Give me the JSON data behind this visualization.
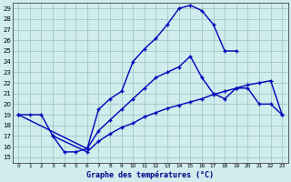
{
  "xlabel": "Graphe des températures (°C)",
  "bg_color": "#d0ecec",
  "grid_color": "#a8cccc",
  "line_color": "#0000bb",
  "xlim": [
    -0.5,
    23.5
  ],
  "ylim": [
    14.5,
    29.5
  ],
  "yticks": [
    15,
    16,
    17,
    18,
    19,
    20,
    21,
    22,
    23,
    24,
    25,
    26,
    27,
    28,
    29
  ],
  "xticks": [
    0,
    1,
    2,
    3,
    4,
    5,
    6,
    7,
    8,
    9,
    10,
    11,
    12,
    13,
    14,
    15,
    16,
    17,
    18,
    19,
    20,
    21,
    22,
    23
  ],
  "curve1_x": [
    0,
    1,
    2,
    3,
    4,
    5,
    6,
    7,
    8,
    9,
    10,
    11,
    12,
    13,
    14,
    15,
    16,
    17,
    18,
    19
  ],
  "curve1_y": [
    19,
    19,
    19,
    17,
    15.5,
    15.5,
    15.8,
    19.5,
    20.5,
    21.2,
    24.0,
    25.2,
    26.2,
    27.5,
    29.0,
    29.3,
    28.8,
    27.5,
    25.0,
    25.0
  ],
  "curve2_x": [
    0,
    6,
    7,
    8,
    9,
    10,
    11,
    12,
    13,
    14,
    15,
    16,
    17,
    18,
    19,
    20,
    21,
    22,
    23
  ],
  "curve2_y": [
    19,
    15.8,
    17.5,
    18.5,
    19.5,
    20.5,
    21.5,
    22.5,
    23.0,
    23.5,
    24.5,
    22.5,
    21.0,
    20.5,
    21.5,
    21.5,
    20.0,
    20.0,
    19.0
  ],
  "curve3_x": [
    3,
    6,
    7,
    8,
    9,
    10,
    11,
    12,
    13,
    14,
    15,
    16,
    17,
    18,
    19,
    20,
    21,
    22,
    23
  ],
  "curve3_y": [
    17,
    15.5,
    16.5,
    17.2,
    17.8,
    18.2,
    18.8,
    19.2,
    19.6,
    19.9,
    20.2,
    20.5,
    20.9,
    21.2,
    21.5,
    21.8,
    22.0,
    22.2,
    19.0
  ]
}
